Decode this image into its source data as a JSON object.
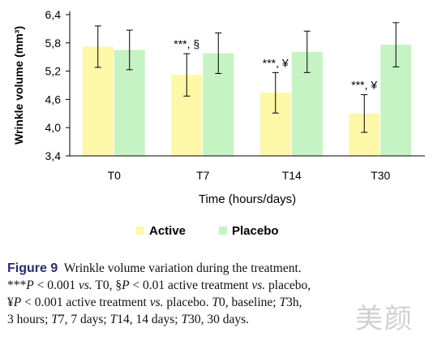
{
  "chart_data": {
    "type": "bar",
    "categories": [
      "T0",
      "T7",
      "T14",
      "T30"
    ],
    "series": [
      {
        "name": "Active",
        "values": [
          5.72,
          5.12,
          4.74,
          4.3
        ],
        "errors": [
          0.44,
          0.45,
          0.43,
          0.4
        ],
        "color": "#fdf7a8"
      },
      {
        "name": "Placebo",
        "values": [
          5.65,
          5.58,
          5.61,
          5.76
        ],
        "errors": [
          0.42,
          0.43,
          0.44,
          0.47
        ],
        "color": "#c6f3c4"
      }
    ],
    "annotations": [
      "***, §",
      "***, ¥",
      "***, ¥"
    ],
    "xlabel": "Time (hours/days)",
    "ylabel": "Wrinkle volume (mm³)",
    "ylim": [
      3.4,
      6.4
    ],
    "yticks": [
      "3,4",
      "4,0",
      "4,6",
      "5,2",
      "5,8",
      "6,4"
    ],
    "yticks_values": [
      3.4,
      4.0,
      4.6,
      5.2,
      5.8,
      6.4
    ],
    "grid": false,
    "legend": "bottom"
  },
  "caption": {
    "label": "Figure 9",
    "title": "Wrinkle volume variation during the treatment.",
    "line2_a": "***",
    "line2_b": "P",
    "line2_c": " < 0.001 ",
    "line2_d": "vs.",
    "line2_e": " T0, §",
    "line2_f": "P",
    "line2_g": " < 0.01 active treatment ",
    "line2_h": "vs.",
    "line2_i": " placebo,",
    "line3_a": "¥",
    "line3_b": "P",
    "line3_c": " < 0.001 active treatment ",
    "line3_d": "vs.",
    "line3_e": " placebo. ",
    "line3_f": "T",
    "line3_g": "0, baseline; ",
    "line3_h": "T",
    "line3_i": "3h,",
    "line4_a": "3 hours; ",
    "line4_b": "T",
    "line4_c": "7, 7 days; ",
    "line4_d": "T",
    "line4_e": "14, 14 days; ",
    "line4_f": "T",
    "line4_g": "30, 30 days."
  },
  "watermark": "美颜"
}
